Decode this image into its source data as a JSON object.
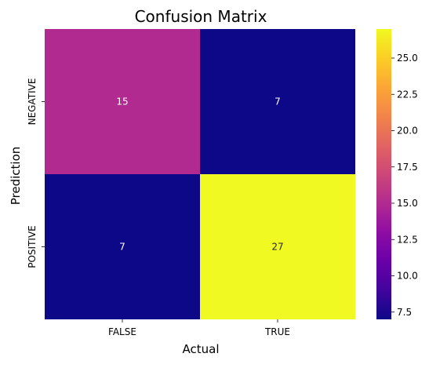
{
  "chart_data": {
    "type": "heatmap",
    "title": "Confusion Matrix",
    "xlabel": "Actual",
    "ylabel": "Prediction",
    "x_categories": [
      "FALSE",
      "TRUE"
    ],
    "y_categories": [
      "NEGATIVE",
      "POSITIVE"
    ],
    "values": [
      [
        15,
        7
      ],
      [
        7,
        27
      ]
    ],
    "colormap": "plasma",
    "colorbar": {
      "range": [
        7,
        27
      ],
      "ticks": [
        "7.5",
        "10.0",
        "12.5",
        "15.0",
        "17.5",
        "20.0",
        "22.5",
        "25.0"
      ]
    }
  }
}
